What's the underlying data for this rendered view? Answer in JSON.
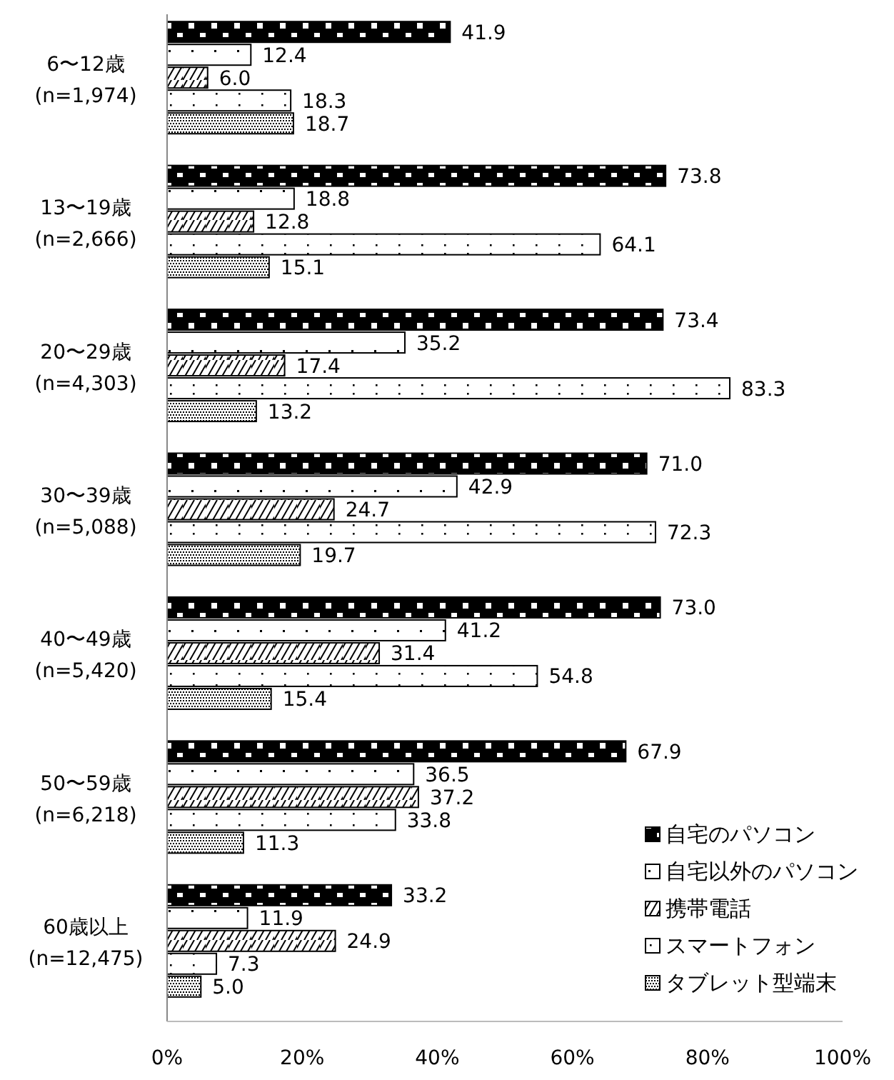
{
  "chart_data": {
    "type": "bar",
    "orientation": "horizontal",
    "categories": [
      "6〜12歳\n(n=1,974)",
      "13〜19歳\n(n=2,666)",
      "20〜29歳\n(n=4,303)",
      "30〜39歳\n(n=5,088)",
      "40〜49歳\n(n=5,420)",
      "50〜59歳\n(n=6,218)",
      "60歳以上\n(n=12,475)"
    ],
    "series": [
      {
        "name": "自宅のパソコン",
        "color": "#000000",
        "values": [
          41.9,
          73.8,
          73.4,
          71.0,
          73.0,
          67.9,
          33.2
        ],
        "value_labels": [
          "41.9",
          "73.8",
          "73.4",
          "71.0",
          "73.0",
          "67.9",
          "33.2"
        ]
      },
      {
        "name": "自宅以外のパソコン",
        "color": "#000000",
        "values": [
          12.4,
          18.8,
          35.2,
          42.9,
          41.2,
          36.5,
          11.9
        ],
        "value_labels": [
          "12.4",
          "18.8",
          "35.2",
          "42.9",
          "41.2",
          "36.5",
          "11.9"
        ]
      },
      {
        "name": "携帯電話",
        "color": "#000000",
        "values": [
          6.0,
          12.8,
          17.4,
          24.7,
          31.4,
          37.2,
          24.9
        ],
        "value_labels": [
          "6.0",
          "12.8",
          "17.4",
          "24.7",
          "31.4",
          "37.2",
          "24.9"
        ]
      },
      {
        "name": "スマートフォン",
        "color": "#000000",
        "values": [
          18.3,
          64.1,
          83.3,
          72.3,
          54.8,
          33.8,
          7.3
        ],
        "value_labels": [
          "18.3",
          "64.1",
          "83.3",
          "72.3",
          "54.8",
          "33.8",
          "7.3"
        ]
      },
      {
        "name": "タブレット型端末",
        "color": "#000000",
        "values": [
          18.7,
          15.1,
          13.2,
          19.7,
          15.4,
          11.3,
          5.0
        ],
        "value_labels": [
          "18.7",
          "15.1",
          "13.2",
          "19.7",
          "15.4",
          "11.3",
          "5.0"
        ]
      }
    ],
    "xlim": [
      0,
      100
    ],
    "xticks": [
      {
        "value": 0,
        "label": "0%"
      },
      {
        "value": 20,
        "label": "20%"
      },
      {
        "value": 40,
        "label": "40%"
      },
      {
        "value": 60,
        "label": "60%"
      },
      {
        "value": 80,
        "label": "80%"
      },
      {
        "value": 100,
        "label": "100%"
      }
    ],
    "grid": false,
    "legend": "bottom right"
  }
}
